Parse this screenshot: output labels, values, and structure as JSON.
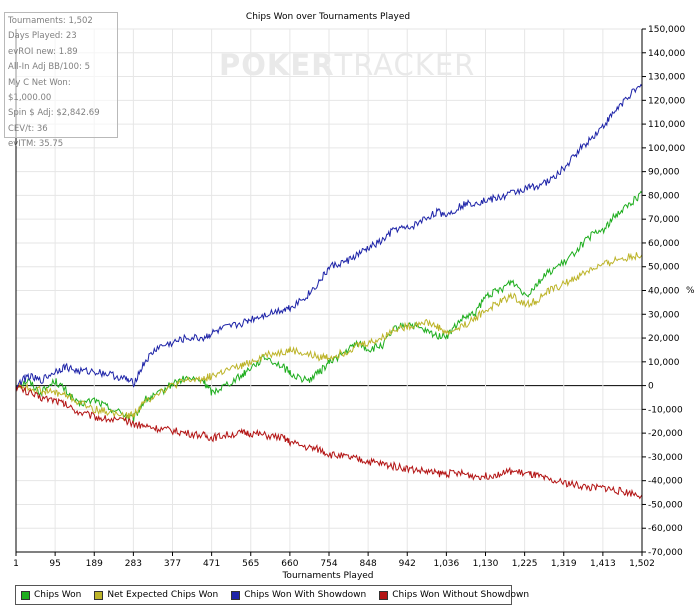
{
  "chart_data": {
    "type": "line",
    "title": "Chips Won over Tournaments Played",
    "xlabel": "Tournaments Played",
    "ylabel": "%",
    "xlim": [
      1,
      1502
    ],
    "ylim": [
      -70000,
      150000
    ],
    "x_ticks": [
      "1",
      "95",
      "189",
      "283",
      "377",
      "471",
      "565",
      "660",
      "754",
      "848",
      "942",
      "1,036",
      "1,130",
      "1,225",
      "1,319",
      "1,413",
      "1,502"
    ],
    "y_ticks": [
      150000,
      140000,
      130000,
      120000,
      110000,
      100000,
      90000,
      80000,
      70000,
      60000,
      50000,
      40000,
      30000,
      20000,
      10000,
      0,
      -10000,
      -20000,
      -30000,
      -40000,
      -50000,
      -60000,
      -70000
    ],
    "y_tick_labels": [
      "150,000",
      "140,000",
      "130,000",
      "120,000",
      "110,000",
      "100,000",
      "90,000",
      "80,000",
      "70,000",
      "60,000",
      "50,000",
      "40,000",
      "30,000",
      "20,000",
      "10,000",
      "0",
      "-10,000",
      "-20,000",
      "-30,000",
      "-40,000",
      "-50,000",
      "-60,000",
      "-70,000"
    ],
    "grid": true,
    "legend_position": "bottom-left",
    "series": [
      {
        "name": "Chips Won",
        "color": "#1fae1f",
        "x": [
          1,
          30,
          60,
          95,
          120,
          150,
          189,
          220,
          260,
          283,
          310,
          340,
          377,
          410,
          450,
          471,
          500,
          540,
          565,
          600,
          640,
          660,
          700,
          730,
          754,
          790,
          820,
          848,
          880,
          910,
          942,
          980,
          1010,
          1036,
          1070,
          1100,
          1130,
          1160,
          1190,
          1225,
          1250,
          1280,
          1319,
          1350,
          1380,
          1413,
          1440,
          1470,
          1502
        ],
        "y": [
          0,
          2000,
          -3000,
          2000,
          -2000,
          -8000,
          -6000,
          -9000,
          -12000,
          -14000,
          -6000,
          -4000,
          1000,
          3000,
          2000,
          -3000,
          0,
          4000,
          8000,
          12000,
          8000,
          5000,
          2000,
          6000,
          10000,
          14000,
          18000,
          15000,
          17000,
          24000,
          26000,
          23000,
          21000,
          21000,
          28000,
          30000,
          38000,
          40000,
          44000,
          38000,
          43000,
          48000,
          52000,
          58000,
          63000,
          66000,
          72000,
          76000,
          81000
        ]
      },
      {
        "name": "Net Expected Chips Won",
        "color": "#bdb42a",
        "x": [
          1,
          30,
          60,
          95,
          120,
          150,
          189,
          220,
          260,
          283,
          310,
          340,
          377,
          410,
          450,
          471,
          500,
          540,
          565,
          600,
          640,
          660,
          700,
          730,
          754,
          790,
          820,
          848,
          880,
          910,
          942,
          980,
          1010,
          1036,
          1070,
          1100,
          1130,
          1160,
          1190,
          1225,
          1250,
          1280,
          1319,
          1350,
          1380,
          1413,
          1440,
          1470,
          1502
        ],
        "y": [
          0,
          -1000,
          -2000,
          -3000,
          -4000,
          -7000,
          -10000,
          -11000,
          -13000,
          -12000,
          -7000,
          -3000,
          0,
          2000,
          3000,
          4000,
          6000,
          8000,
          10000,
          13000,
          14000,
          15000,
          13000,
          12000,
          12000,
          14000,
          17000,
          18000,
          20000,
          24000,
          25000,
          27000,
          25000,
          22000,
          25000,
          28000,
          32000,
          35000,
          38000,
          34000,
          36000,
          40000,
          43000,
          46000,
          49000,
          51000,
          53000,
          54000,
          55000
        ]
      },
      {
        "name": "Chips Won With Showdown",
        "color": "#1e24a8",
        "x": [
          1,
          30,
          60,
          95,
          120,
          150,
          189,
          220,
          260,
          283,
          310,
          340,
          377,
          410,
          450,
          471,
          500,
          540,
          565,
          600,
          640,
          660,
          700,
          730,
          754,
          790,
          820,
          848,
          880,
          910,
          942,
          980,
          1010,
          1036,
          1070,
          1100,
          1130,
          1160,
          1190,
          1225,
          1250,
          1280,
          1319,
          1350,
          1380,
          1413,
          1440,
          1470,
          1502
        ],
        "y": [
          0,
          4000,
          2000,
          6000,
          8000,
          6000,
          6000,
          5000,
          3000,
          1000,
          10000,
          16000,
          18000,
          20000,
          20000,
          22000,
          24000,
          26000,
          28000,
          30000,
          32000,
          33000,
          38000,
          44000,
          50000,
          52000,
          55000,
          58000,
          61000,
          66000,
          66000,
          70000,
          73000,
          72000,
          76000,
          77000,
          78000,
          79000,
          81000,
          83000,
          84000,
          86000,
          92000,
          99000,
          104000,
          110000,
          116000,
          122000,
          126000
        ]
      },
      {
        "name": "Chips Won Without Showdown",
        "color": "#b31414",
        "x": [
          1,
          30,
          60,
          95,
          120,
          150,
          189,
          220,
          260,
          283,
          310,
          340,
          377,
          410,
          450,
          471,
          500,
          540,
          565,
          600,
          640,
          660,
          700,
          730,
          754,
          790,
          820,
          848,
          880,
          910,
          942,
          980,
          1010,
          1036,
          1070,
          1100,
          1130,
          1160,
          1190,
          1225,
          1250,
          1280,
          1319,
          1350,
          1380,
          1413,
          1440,
          1470,
          1502
        ],
        "y": [
          0,
          -3000,
          -5000,
          -6000,
          -8000,
          -11000,
          -13000,
          -14000,
          -15000,
          -16000,
          -17000,
          -18000,
          -19000,
          -20000,
          -21000,
          -22000,
          -21000,
          -20000,
          -20000,
          -21000,
          -22000,
          -24000,
          -26000,
          -27000,
          -29000,
          -30000,
          -31000,
          -32000,
          -33000,
          -34000,
          -35000,
          -36000,
          -37000,
          -37000,
          -37000,
          -38000,
          -38000,
          -37000,
          -36000,
          -37000,
          -38000,
          -40000,
          -41000,
          -42000,
          -43000,
          -43000,
          -44000,
          -45000,
          -46000
        ]
      }
    ]
  },
  "stats": [
    "Tournaments: 1,502",
    "Days Played: 23",
    "evROI new: 1.89",
    "All-In Adj BB/100: 5",
    "My C Net Won: $1,000.00",
    "Spin $ Adj: $2,842.69",
    "CEV/t: 36",
    "evITM: 35.75"
  ],
  "watermark": {
    "part1": "POKER",
    "part2": "TRACKER"
  }
}
